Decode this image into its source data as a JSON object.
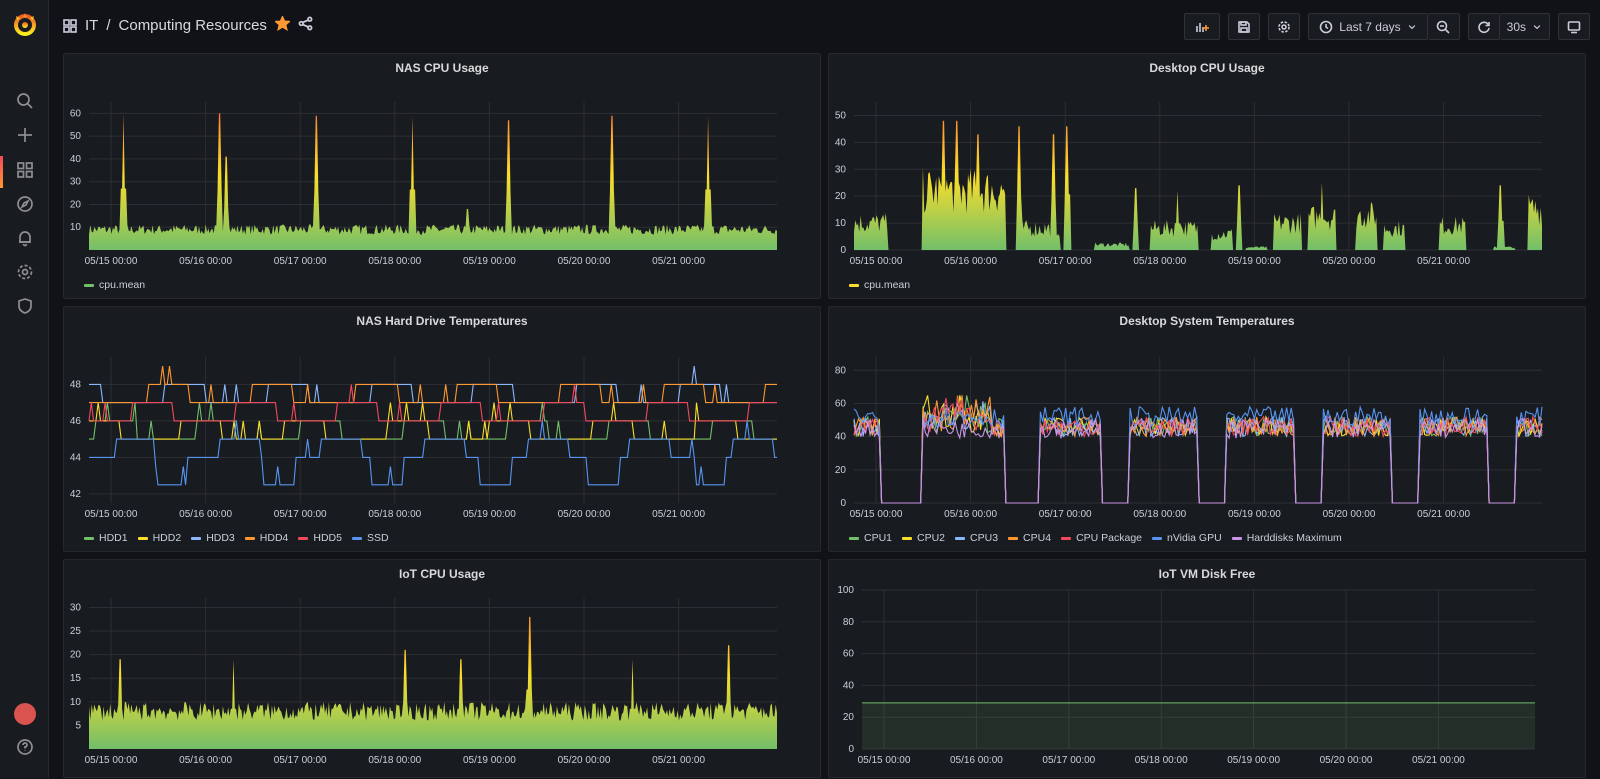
{
  "breadcrumb": {
    "folder": "IT",
    "separator": "/",
    "dashboard": "Computing Resources"
  },
  "toolbar": {
    "time_range": "Last 7 days",
    "refresh_interval": "30s"
  },
  "colors": {
    "green": "#73bf69",
    "yellow": "#fade2a",
    "blue": "#8ab8ff",
    "orange": "#ff9830",
    "red": "#f2495c",
    "nvidia": "#5794f2",
    "purple": "#ca95e5"
  },
  "x_ticks": [
    "05/15 00:00",
    "05/16 00:00",
    "05/17 00:00",
    "05/18 00:00",
    "05/19 00:00",
    "05/20 00:00",
    "05/21 00:00"
  ],
  "panels": {
    "nas_cpu": {
      "title": "NAS CPU Usage",
      "legend": [
        {
          "label": "cpu.mean",
          "color": "#73bf69"
        }
      ]
    },
    "desktop_cpu": {
      "title": "Desktop CPU Usage",
      "legend": [
        {
          "label": "cpu.mean",
          "color": "#fade2a"
        }
      ]
    },
    "nas_temps": {
      "title": "NAS Hard Drive Temperatures",
      "legend": [
        {
          "label": "HDD1",
          "color": "#73bf69"
        },
        {
          "label": "HDD2",
          "color": "#fade2a"
        },
        {
          "label": "HDD3",
          "color": "#8ab8ff"
        },
        {
          "label": "HDD4",
          "color": "#ff9830"
        },
        {
          "label": "HDD5",
          "color": "#f2495c"
        },
        {
          "label": "SSD",
          "color": "#5794f2"
        }
      ]
    },
    "desktop_temps": {
      "title": "Desktop System Temperatures",
      "legend": [
        {
          "label": "CPU1",
          "color": "#73bf69"
        },
        {
          "label": "CPU2",
          "color": "#fade2a"
        },
        {
          "label": "CPU3",
          "color": "#8ab8ff"
        },
        {
          "label": "CPU4",
          "color": "#ff9830"
        },
        {
          "label": "CPU Package",
          "color": "#f2495c"
        },
        {
          "label": "nVidia GPU",
          "color": "#5794f2"
        },
        {
          "label": "Harddisks Maximum",
          "color": "#ca95e5"
        }
      ]
    },
    "iot_cpu": {
      "title": "IoT CPU Usage"
    },
    "iot_disk": {
      "title": "IoT VM Disk Free"
    }
  },
  "chart_data": [
    {
      "id": "nas_cpu",
      "type": "area",
      "title": "NAS CPU Usage",
      "yticks": [
        10,
        20,
        30,
        40,
        50,
        60
      ],
      "ylim": [
        0,
        65
      ],
      "baseline": 9,
      "spikes": [
        [
          0.05,
          60
        ],
        [
          0.19,
          60
        ],
        [
          0.2,
          41
        ],
        [
          0.33,
          59
        ],
        [
          0.47,
          59
        ],
        [
          0.61,
          57
        ],
        [
          0.76,
          59
        ],
        [
          0.9,
          59
        ],
        [
          0.55,
          18
        ]
      ]
    },
    {
      "id": "desktop_cpu",
      "type": "area",
      "title": "Desktop CPU Usage",
      "yticks": [
        0,
        10,
        20,
        30,
        40,
        50
      ],
      "ylim": [
        0,
        55
      ],
      "blocks": [
        [
          0.0,
          0.05,
          10
        ],
        [
          0.1,
          0.22,
          22
        ],
        [
          0.24,
          0.3,
          8
        ],
        [
          0.35,
          0.4,
          2
        ],
        [
          0.43,
          0.5,
          8
        ],
        [
          0.52,
          0.55,
          6
        ],
        [
          0.57,
          0.6,
          1
        ],
        [
          0.61,
          0.65,
          10
        ],
        [
          0.66,
          0.7,
          12
        ],
        [
          0.73,
          0.76,
          13
        ],
        [
          0.77,
          0.8,
          8
        ],
        [
          0.85,
          0.89,
          9
        ],
        [
          0.93,
          0.96,
          1
        ],
        [
          0.98,
          1.0,
          15
        ]
      ],
      "spikes": [
        [
          0.13,
          48
        ],
        [
          0.15,
          48
        ],
        [
          0.18,
          43
        ],
        [
          0.24,
          46
        ],
        [
          0.29,
          43
        ],
        [
          0.31,
          46
        ],
        [
          0.41,
          23
        ],
        [
          0.47,
          22
        ],
        [
          0.56,
          24
        ],
        [
          0.68,
          25
        ],
        [
          0.94,
          24
        ]
      ]
    },
    {
      "id": "nas_temps",
      "type": "line",
      "title": "NAS Hard Drive Temperatures",
      "yticks": [
        42,
        44,
        46,
        48
      ],
      "ylim": [
        41.5,
        49.5
      ]
    },
    {
      "id": "desktop_temps",
      "type": "line",
      "title": "Desktop System Temperatures",
      "yticks": [
        0,
        20,
        40,
        60,
        80
      ],
      "ylim": [
        0,
        88
      ]
    },
    {
      "id": "iot_cpu",
      "type": "area",
      "title": "IoT CPU Usage",
      "yticks": [
        5,
        10,
        15,
        20,
        25,
        30
      ],
      "ylim": [
        0,
        32
      ],
      "baseline": 8,
      "spikes": [
        [
          0.045,
          19
        ],
        [
          0.21,
          19
        ],
        [
          0.46,
          21
        ],
        [
          0.54,
          19
        ],
        [
          0.64,
          28
        ],
        [
          0.79,
          19
        ],
        [
          0.93,
          22
        ]
      ]
    },
    {
      "id": "iot_disk",
      "type": "area",
      "title": "IoT VM Disk Free",
      "yticks": [
        0,
        20,
        40,
        60,
        80,
        100
      ],
      "ylim": [
        0,
        100
      ],
      "value": 29
    }
  ]
}
